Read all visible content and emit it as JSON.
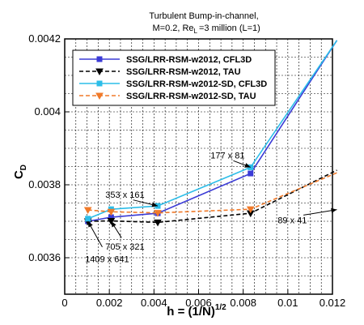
{
  "chart_data": {
    "type": "line",
    "title_lines": [
      "Turbulent Bump-in-channel,",
      "M=0.2, Re",
      "L",
      "=3 million (L=1)"
    ],
    "xlabel": "h = (1/N)",
    "xlabel_sup": "1/2",
    "ylabel": "C",
    "ylabel_sub": "D",
    "xlim": [
      0,
      0.012
    ],
    "ylim": [
      0.0035,
      0.0042
    ],
    "xticks": [
      0,
      0.002,
      0.004,
      0.006,
      0.008,
      0.01,
      0.012
    ],
    "xtick_labels": [
      "0",
      "0.002",
      "0.004",
      "0.006",
      "0.008",
      "0.01",
      "0.012"
    ],
    "yticks": [
      0.0036,
      0.0038,
      0.004,
      0.0042
    ],
    "ytick_labels": [
      "0.0036",
      "0.0038",
      "0.004",
      "0.0042"
    ],
    "grid": true,
    "legend_position": "top-left",
    "x": [
      0.00104,
      0.00208,
      0.00417,
      0.00833,
      0.0122
    ],
    "series": [
      {
        "name": "SSG/LRR-RSM-w2012, CFL3D",
        "color": "#3b3bd6",
        "style": "solid",
        "marker": "square",
        "values": [
          0.0037,
          0.003711,
          0.003722,
          0.003831,
          0.004196
        ]
      },
      {
        "name": "SSG/LRR-RSM-w2012, TAU",
        "color": "#000000",
        "style": "dashed",
        "marker": "triangle-down",
        "values": [
          0.0037,
          0.003701,
          0.003697,
          0.003722,
          0.00384
        ]
      },
      {
        "name": "SSG/LRR-RSM-w2012-SD, CFL3D",
        "color": "#2cbde8",
        "style": "solid",
        "marker": "square",
        "values": [
          0.003707,
          0.003733,
          0.003742,
          0.003848,
          0.004196
        ]
      },
      {
        "name": "SSG/LRR-RSM-w2012-SD, TAU",
        "color": "#f07a2a",
        "style": "dashed",
        "marker": "triangle-down",
        "values": [
          0.003731,
          0.003726,
          0.003723,
          0.003733,
          0.003833
        ]
      }
    ],
    "annotations": [
      {
        "text": "1409 x 641",
        "x": 0.0019,
        "y": 0.003588,
        "arrow_to": [
          0.00104,
          0.0037
        ]
      },
      {
        "text": "705 x 321",
        "x": 0.0027,
        "y": 0.003622,
        "arrow_to": [
          0.00208,
          0.0037
        ]
      },
      {
        "text": "353 x 161",
        "x": 0.0027,
        "y": 0.003764,
        "arrow_to": [
          0.00417,
          0.003742
        ]
      },
      {
        "text": "177 x 81",
        "x": 0.0073,
        "y": 0.003872,
        "arrow_to": [
          0.00833,
          0.003848
        ]
      },
      {
        "text": "89 x 41",
        "x": 0.0102,
        "y": 0.003694,
        "arrow_to": [
          0.0122,
          0.003732
        ]
      }
    ]
  }
}
